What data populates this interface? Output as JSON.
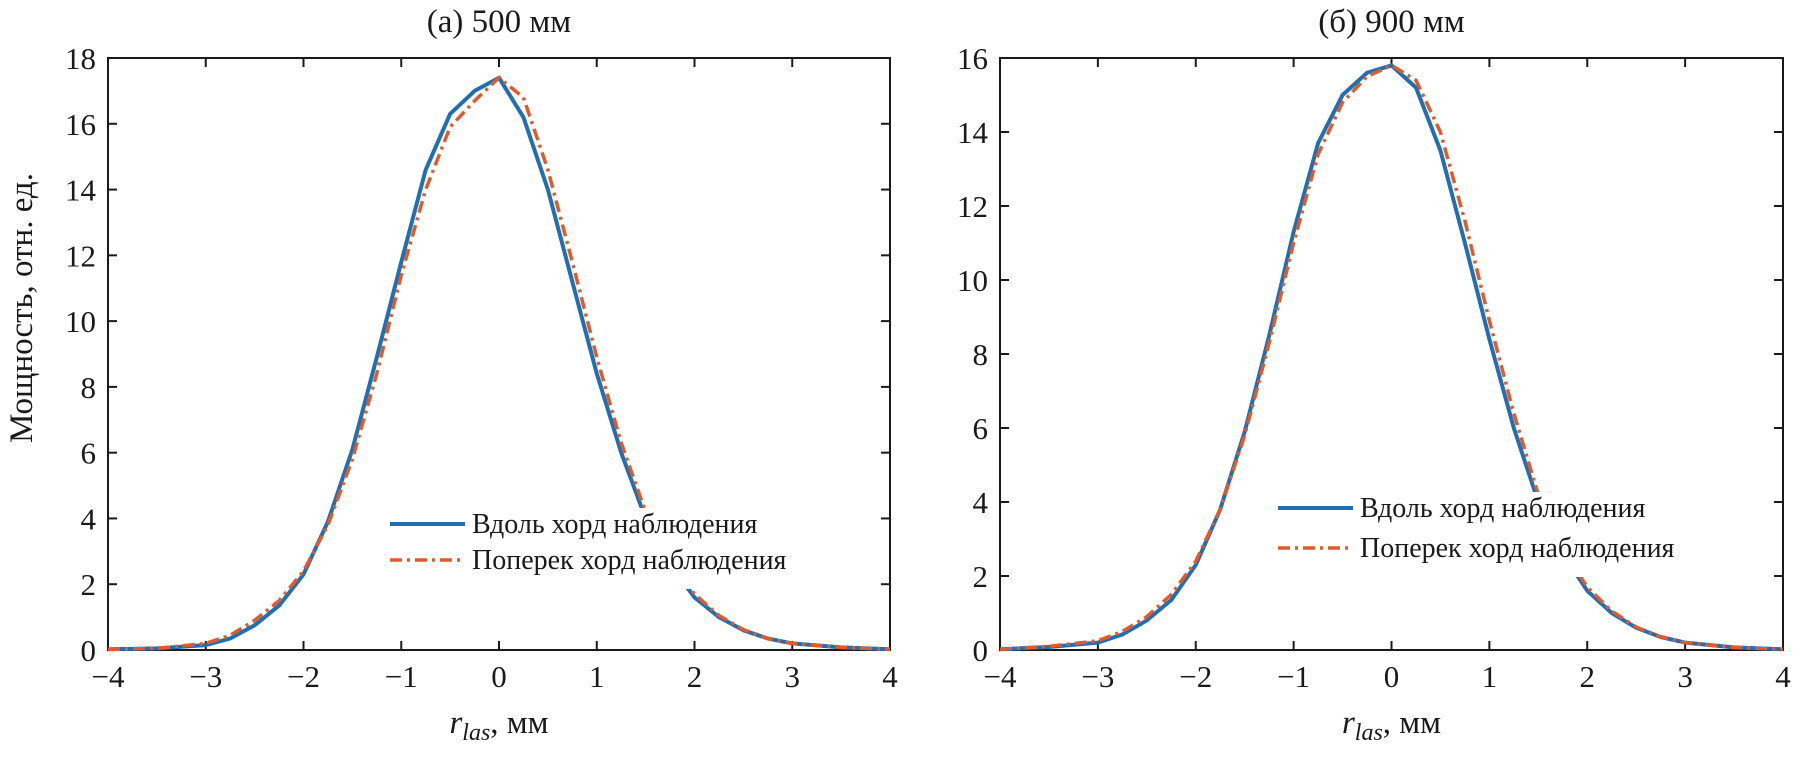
{
  "figure": {
    "ylabel": "Мощность, отн. ед.",
    "xlabel_main": "r",
    "xlabel_sub": "las",
    "xlabel_unit": ", мм"
  },
  "chart_data": [
    {
      "type": "line",
      "title": "(а)  500 мм",
      "xlabel": "r_las, мм",
      "ylabel": "Мощность, отн. ед.",
      "xlim": [
        -4,
        4
      ],
      "ylim": [
        0,
        18
      ],
      "xticks": [
        -4,
        -3,
        -2,
        -1,
        0,
        1,
        2,
        3,
        4
      ],
      "yticks": [
        0,
        2,
        4,
        6,
        8,
        10,
        12,
        14,
        16,
        18
      ],
      "xtick_labels": [
        "−4",
        "−3",
        "−2",
        "−1",
        "0",
        "1",
        "2",
        "3",
        "4"
      ],
      "ytick_labels": [
        "0",
        "2",
        "4",
        "6",
        "8",
        "10",
        "12",
        "14",
        "16",
        "18"
      ],
      "grid": false,
      "legend": "lower-right",
      "x": [
        -4.0,
        -3.5,
        -3.0,
        -2.75,
        -2.5,
        -2.25,
        -2.0,
        -1.75,
        -1.5,
        -1.25,
        -1.0,
        -0.75,
        -0.5,
        -0.25,
        0.0,
        0.25,
        0.5,
        0.75,
        1.0,
        1.25,
        1.5,
        1.75,
        2.0,
        2.25,
        2.5,
        2.75,
        3.0,
        3.5,
        4.0
      ],
      "series": [
        {
          "name": "Вдоль хорд наблюдения",
          "color": "#1f6fb5",
          "style": "solid",
          "values": [
            0.02,
            0.05,
            0.15,
            0.35,
            0.75,
            1.35,
            2.3,
            3.9,
            6.1,
            8.9,
            11.8,
            14.6,
            16.3,
            17.0,
            17.4,
            16.2,
            14.0,
            11.2,
            8.4,
            6.0,
            4.0,
            2.6,
            1.6,
            1.0,
            0.6,
            0.35,
            0.2,
            0.08,
            0.02
          ]
        },
        {
          "name": "Поперек хорд наблюдения",
          "color": "#e05a2b",
          "style": "dashdot",
          "values": [
            0.02,
            0.05,
            0.2,
            0.45,
            0.9,
            1.5,
            2.4,
            3.8,
            5.8,
            8.4,
            11.4,
            14.0,
            15.9,
            16.7,
            17.4,
            16.8,
            14.6,
            11.8,
            8.9,
            6.3,
            4.2,
            2.7,
            1.7,
            1.05,
            0.62,
            0.35,
            0.2,
            0.08,
            0.02
          ]
        }
      ]
    },
    {
      "type": "line",
      "title": "(б)  900 мм",
      "xlabel": "r_las, мм",
      "xlim": [
        -4,
        4
      ],
      "ylim": [
        0,
        16
      ],
      "xticks": [
        -4,
        -3,
        -2,
        -1,
        0,
        1,
        2,
        3,
        4
      ],
      "yticks": [
        0,
        2,
        4,
        6,
        8,
        10,
        12,
        14,
        16
      ],
      "xtick_labels": [
        "−4",
        "−3",
        "−2",
        "−1",
        "0",
        "1",
        "2",
        "3",
        "4"
      ],
      "ytick_labels": [
        "0",
        "2",
        "4",
        "6",
        "8",
        "10",
        "12",
        "14",
        "16"
      ],
      "grid": false,
      "legend": "lower-right",
      "x": [
        -4.0,
        -3.5,
        -3.0,
        -2.75,
        -2.5,
        -2.25,
        -2.0,
        -1.75,
        -1.5,
        -1.25,
        -1.0,
        -0.75,
        -0.5,
        -0.25,
        0.0,
        0.25,
        0.5,
        0.75,
        1.0,
        1.25,
        1.5,
        1.75,
        2.0,
        2.25,
        2.5,
        2.75,
        3.0,
        3.5,
        4.0
      ],
      "series": [
        {
          "name": "Вдоль хорд наблюдения",
          "color": "#1f6fb5",
          "style": "solid",
          "values": [
            0.02,
            0.08,
            0.2,
            0.42,
            0.8,
            1.35,
            2.3,
            3.8,
            5.9,
            8.5,
            11.3,
            13.7,
            15.0,
            15.6,
            15.8,
            15.2,
            13.5,
            11.0,
            8.4,
            6.0,
            4.0,
            2.6,
            1.6,
            1.0,
            0.6,
            0.35,
            0.2,
            0.07,
            0.02
          ]
        },
        {
          "name": "Поперек хорд наблюдения",
          "color": "#e05a2b",
          "style": "dashdot",
          "values": [
            0.02,
            0.1,
            0.25,
            0.5,
            0.9,
            1.5,
            2.4,
            3.8,
            5.8,
            8.3,
            11.0,
            13.4,
            14.8,
            15.5,
            15.8,
            15.4,
            14.0,
            11.6,
            8.9,
            6.4,
            4.2,
            2.7,
            1.7,
            1.05,
            0.62,
            0.36,
            0.2,
            0.07,
            0.02
          ]
        }
      ]
    }
  ]
}
